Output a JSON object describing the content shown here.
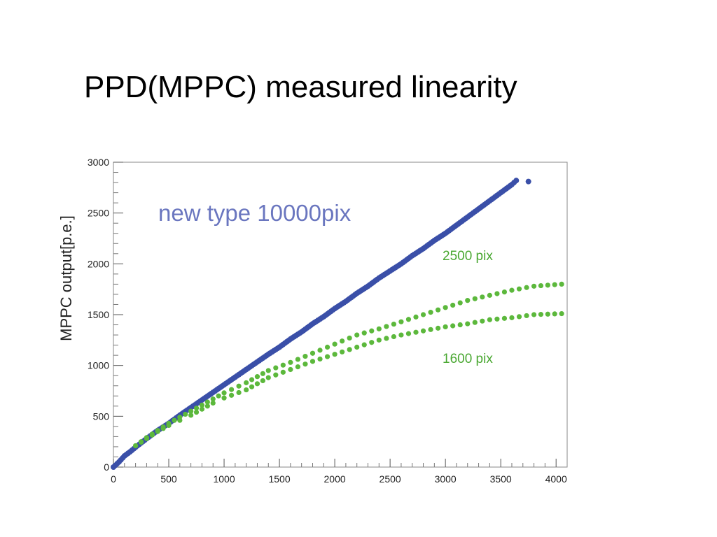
{
  "slide": {
    "title": "PPD(MPPC) measured linearity"
  },
  "chart_data": {
    "type": "scatter",
    "title": "new type 10000pix",
    "xlabel": "",
    "ylabel": "MPPC output[p.e.]",
    "xlim": [
      0,
      4100
    ],
    "ylim": [
      0,
      3000
    ],
    "x_ticks": [
      "0",
      "500",
      "1000",
      "1500",
      "2000",
      "2500",
      "3000",
      "3500",
      "4000"
    ],
    "y_ticks": [
      "0",
      "500",
      "1000",
      "1500",
      "2000",
      "2500",
      "3000"
    ],
    "grid": false,
    "series": [
      {
        "name": "",
        "color": "#3a4fa8",
        "points": [
          [
            0,
            0
          ],
          [
            50,
            50
          ],
          [
            100,
            110
          ],
          [
            150,
            150
          ],
          [
            200,
            195
          ],
          [
            300,
            280
          ],
          [
            400,
            360
          ],
          [
            500,
            430
          ],
          [
            600,
            510
          ],
          [
            700,
            585
          ],
          [
            800,
            660
          ],
          [
            900,
            735
          ],
          [
            1000,
            810
          ],
          [
            1100,
            885
          ],
          [
            1200,
            960
          ],
          [
            1300,
            1035
          ],
          [
            1400,
            1110
          ],
          [
            1500,
            1180
          ],
          [
            1600,
            1260
          ],
          [
            1700,
            1330
          ],
          [
            1800,
            1410
          ],
          [
            1900,
            1480
          ],
          [
            2000,
            1560
          ],
          [
            2100,
            1630
          ],
          [
            2200,
            1710
          ],
          [
            2300,
            1780
          ],
          [
            2400,
            1860
          ],
          [
            2500,
            1930
          ],
          [
            2600,
            2000
          ],
          [
            2700,
            2080
          ],
          [
            2800,
            2150
          ],
          [
            2900,
            2230
          ],
          [
            3000,
            2300
          ],
          [
            3100,
            2380
          ],
          [
            3200,
            2460
          ],
          [
            3300,
            2540
          ],
          [
            3400,
            2620
          ],
          [
            3500,
            2700
          ],
          [
            3600,
            2780
          ],
          [
            3640,
            2820
          ],
          [
            3750,
            2810
          ]
        ]
      },
      {
        "name": "2500 pix",
        "color": "#5cb83c",
        "points": [
          [
            200,
            210
          ],
          [
            300,
            290
          ],
          [
            400,
            360
          ],
          [
            500,
            430
          ],
          [
            600,
            490
          ],
          [
            700,
            550
          ],
          [
            800,
            610
          ],
          [
            900,
            670
          ],
          [
            1000,
            730
          ],
          [
            1200,
            830
          ],
          [
            1400,
            950
          ],
          [
            1600,
            1030
          ],
          [
            1800,
            1120
          ],
          [
            2000,
            1210
          ],
          [
            2200,
            1300
          ],
          [
            2400,
            1360
          ],
          [
            2600,
            1430
          ],
          [
            2800,
            1500
          ],
          [
            3000,
            1570
          ],
          [
            3200,
            1640
          ],
          [
            3400,
            1690
          ],
          [
            3600,
            1740
          ],
          [
            3800,
            1780
          ],
          [
            4050,
            1800
          ]
        ]
      },
      {
        "name": "1600 pix",
        "color": "#5cb83c",
        "points": [
          [
            200,
            210
          ],
          [
            300,
            280
          ],
          [
            400,
            350
          ],
          [
            500,
            410
          ],
          [
            600,
            460
          ],
          [
            700,
            510
          ],
          [
            800,
            570
          ],
          [
            900,
            630
          ],
          [
            1000,
            680
          ],
          [
            1200,
            760
          ],
          [
            1400,
            880
          ],
          [
            1600,
            960
          ],
          [
            1800,
            1040
          ],
          [
            2000,
            1110
          ],
          [
            2200,
            1180
          ],
          [
            2400,
            1250
          ],
          [
            2600,
            1300
          ],
          [
            2800,
            1340
          ],
          [
            3000,
            1380
          ],
          [
            3200,
            1410
          ],
          [
            3400,
            1450
          ],
          [
            3600,
            1470
          ],
          [
            3800,
            1500
          ],
          [
            4050,
            1510
          ]
        ]
      }
    ]
  }
}
